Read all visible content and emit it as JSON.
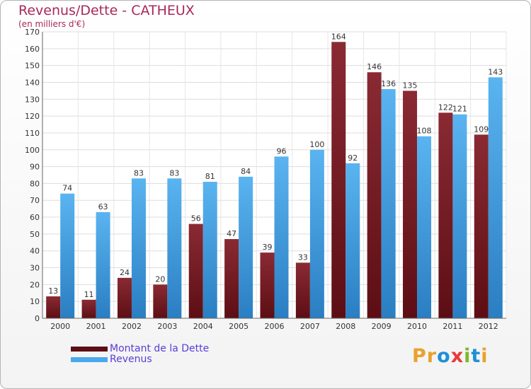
{
  "title": "Revenus/Dette - CATHEUX",
  "subtitle": "(en milliers d'€)",
  "logo": {
    "text": "Proxiti",
    "letter_colors": [
      "#e8a22a",
      "#e8a22a",
      "#1f8fd8",
      "#e83a3a",
      "#7ab82e",
      "#1f8fd8",
      "#e8a22a"
    ]
  },
  "chart_data": {
    "type": "bar",
    "categories": [
      "2000",
      "2001",
      "2002",
      "2003",
      "2004",
      "2005",
      "2006",
      "2007",
      "2008",
      "2009",
      "2010",
      "2011",
      "2012"
    ],
    "series": [
      {
        "name": "Montant de la Dette",
        "color": "#7a1f28",
        "values": [
          13,
          11,
          24,
          20,
          56,
          47,
          39,
          33,
          164,
          146,
          135,
          122,
          109
        ]
      },
      {
        "name": "Revenus",
        "color": "#4aa8ec",
        "values": [
          74,
          63,
          83,
          83,
          81,
          84,
          96,
          100,
          92,
          136,
          108,
          121,
          143
        ]
      }
    ],
    "ylim": [
      0,
      170
    ],
    "yticks": [
      0,
      10,
      20,
      30,
      40,
      50,
      60,
      70,
      80,
      90,
      100,
      110,
      120,
      130,
      140,
      150,
      160,
      170
    ],
    "grid": true,
    "legend_position": "bottom-left"
  }
}
